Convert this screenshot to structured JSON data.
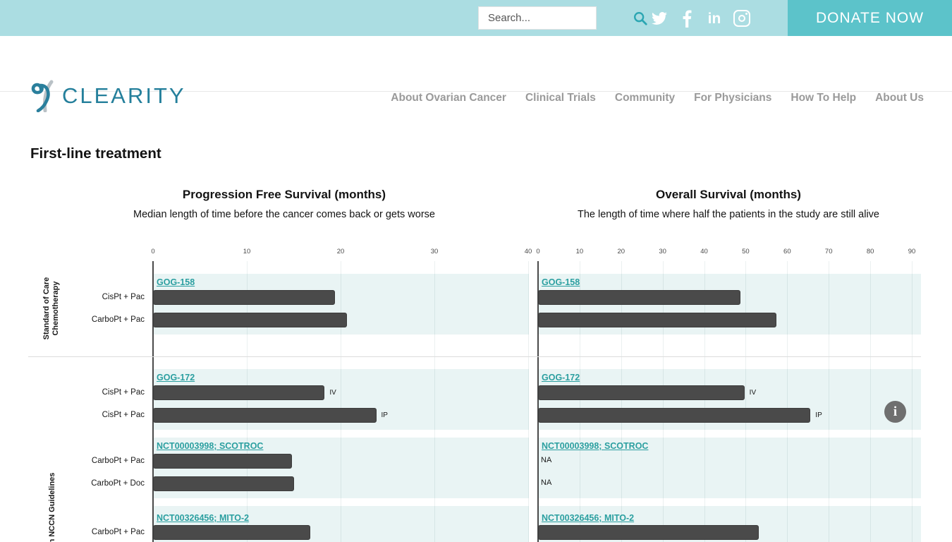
{
  "topbar": {
    "search_placeholder": "Search...",
    "donate_label": "DONATE NOW",
    "social_icons": [
      "twitter",
      "facebook",
      "linkedin",
      "instagram"
    ]
  },
  "brand": {
    "name": "CLEARITY"
  },
  "nav": {
    "items": [
      {
        "label": "About Ovarian Cancer"
      },
      {
        "label": "Clinical Trials"
      },
      {
        "label": "Community"
      },
      {
        "label": "For Physicians"
      },
      {
        "label": "How To Help"
      },
      {
        "label": "About Us"
      }
    ]
  },
  "page": {
    "heading": "First-line treatment"
  },
  "info_button": {
    "glyph": "i"
  },
  "chart_data": {
    "type": "bar",
    "orientation": "horizontal",
    "charts": [
      {
        "id": "pfs",
        "title": "Progression Free Survival (months)",
        "subtitle": "Median length of time before the cancer comes back or gets worse",
        "xlim": [
          0,
          40
        ],
        "tick_step": 10,
        "grid": true
      },
      {
        "id": "os",
        "title": "Overall Survival (months)",
        "subtitle": "The length of time where half the patients in the study are still alive",
        "xlim": [
          0,
          90
        ],
        "tick_step": 10,
        "grid": true
      }
    ],
    "groups": [
      {
        "label_lines": [
          "Standard of Care",
          "Chemotherapy"
        ],
        "sections": [
          {
            "trial": "GOG-158",
            "rows": [
              {
                "treatment": "CisPt + Pac",
                "pfs": 19.4,
                "os": 48.7
              },
              {
                "treatment": "CarboPt + Pac",
                "pfs": 20.7,
                "os": 57.4
              }
            ]
          }
        ]
      },
      {
        "label_lines": [
          "n NCCN Guidelines"
        ],
        "sections": [
          {
            "trial": "GOG-172",
            "rows": [
              {
                "treatment": "CisPt + Pac",
                "pfs": 18.3,
                "os": 49.7,
                "note": "IV"
              },
              {
                "treatment": "CisPt + Pac",
                "pfs": 23.8,
                "os": 65.6,
                "note": "IP"
              }
            ]
          },
          {
            "trial": "NCT00003998; SCOTROC",
            "rows": [
              {
                "treatment": "CarboPt + Pac",
                "pfs": 14.8,
                "os": "NA"
              },
              {
                "treatment": "CarboPt + Doc",
                "pfs": 15.0,
                "os": "NA"
              }
            ]
          },
          {
            "trial": "NCT00326456; MITO-2",
            "rows": [
              {
                "treatment": "CarboPt + Pac",
                "pfs": 16.8,
                "os": 53.2
              }
            ]
          }
        ]
      }
    ]
  }
}
